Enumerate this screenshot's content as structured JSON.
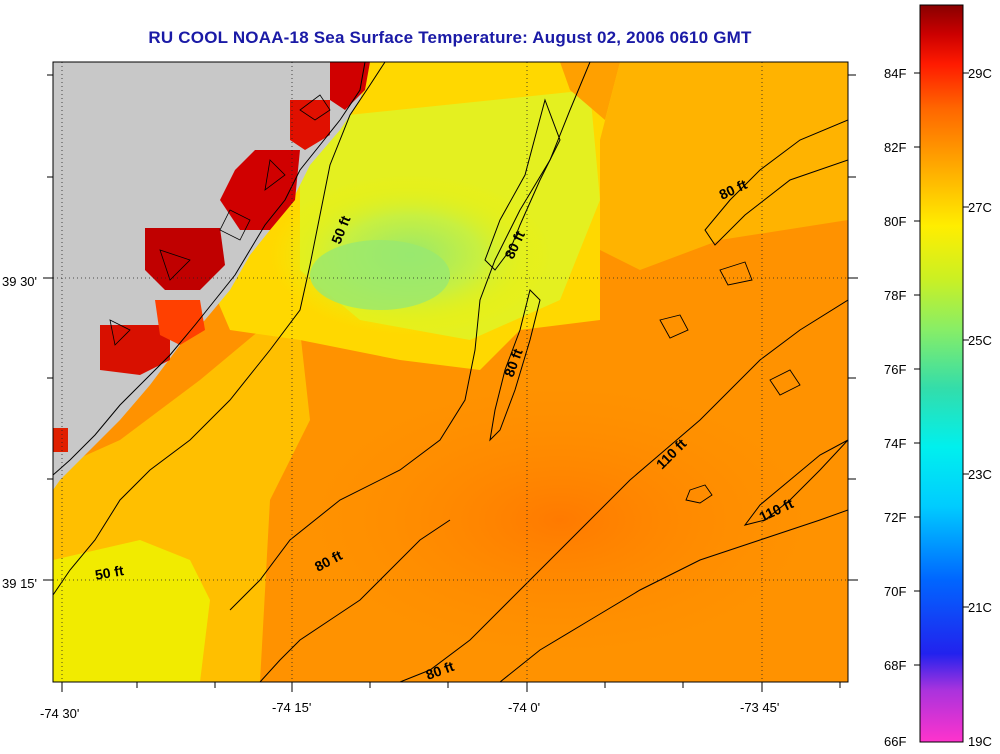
{
  "title": "RU COOL  NOAA-18  Sea Surface Temperature:  August 02, 2006 0610 GMT",
  "map": {
    "lon_ticks": [
      "-74 30'",
      "-74 15'",
      "-74 0'",
      "-73 45'"
    ],
    "lat_ticks": [
      "39 30'",
      "39 15'"
    ]
  },
  "contour_labels": [
    "50 ft",
    "50 ft",
    "80 ft",
    "80 ft",
    "80 ft",
    "80 ft",
    "80 ft",
    "110 ft",
    "110 ft"
  ],
  "colorbar": {
    "f_labels": [
      "84F",
      "82F",
      "80F",
      "78F",
      "76F",
      "74F",
      "72F",
      "70F",
      "68F",
      "66F"
    ],
    "c_labels": [
      "29C",
      "27C",
      "25C",
      "23C",
      "21C",
      "19C"
    ]
  },
  "colors": {
    "land": "#c8c8c8",
    "title": "#1a1aa6"
  }
}
